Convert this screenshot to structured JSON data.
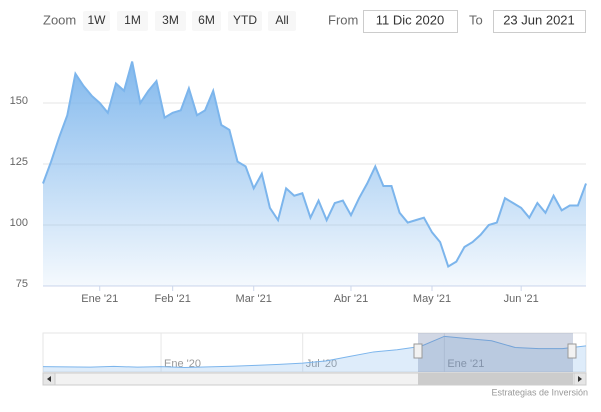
{
  "range_selector": {
    "zoom_label": "Zoom",
    "buttons": [
      "1W",
      "1M",
      "3M",
      "6M",
      "YTD",
      "All"
    ],
    "from_label": "From",
    "from": "11 Dic 2020",
    "to_label": "To",
    "to": "23 Jun 2021"
  },
  "credits": "Estrategias de Inversión",
  "chart_data": {
    "type": "area",
    "color": "#7cb5ec",
    "grid": true,
    "categories": [
      null,
      null,
      null,
      null,
      null,
      null,
      null,
      "Ene '21",
      null,
      null,
      null,
      null,
      null,
      null,
      null,
      null,
      "Feb '21",
      null,
      null,
      null,
      null,
      null,
      null,
      null,
      null,
      null,
      "Mar '21",
      null,
      null,
      null,
      null,
      null,
      null,
      null,
      null,
      null,
      null,
      null,
      "Abr '21",
      null,
      null,
      null,
      null,
      null,
      null,
      null,
      null,
      null,
      "May '21",
      null,
      null,
      null,
      null,
      null,
      null,
      null,
      null,
      null,
      null,
      "Jun '21",
      null,
      null,
      null,
      null,
      null,
      null,
      null,
      null
    ],
    "values": [
      117,
      126,
      136,
      145,
      162,
      157,
      153,
      150,
      146,
      158,
      155,
      167,
      150,
      155,
      159,
      144,
      146,
      147,
      156,
      145,
      147,
      155,
      141,
      139,
      126,
      124,
      115,
      121,
      107,
      102,
      115,
      112,
      113,
      103,
      110,
      102,
      109,
      110,
      104,
      111,
      117,
      124,
      116,
      116,
      105,
      101,
      102,
      103,
      97,
      93,
      83,
      85,
      91,
      93,
      96,
      100,
      101,
      111,
      109,
      107,
      103,
      109,
      105,
      112,
      106,
      108,
      108,
      117
    ],
    "ylim": [
      75,
      175
    ],
    "yticks": [
      75,
      100,
      125,
      150
    ],
    "navigator": {
      "categories": [
        null,
        null,
        null,
        null,
        null,
        "Ene '20",
        null,
        null,
        null,
        null,
        null,
        "Jul '20",
        null,
        null,
        null,
        null,
        null,
        "Ene '21",
        null,
        null,
        null,
        null,
        null,
        null
      ],
      "values": [
        24,
        23,
        22,
        25,
        22,
        24,
        20,
        23,
        26,
        30,
        34,
        40,
        50,
        70,
        90,
        100,
        115,
        160,
        150,
        140,
        110,
        105,
        105,
        117
      ],
      "ylim": [
        0,
        175
      ]
    }
  }
}
